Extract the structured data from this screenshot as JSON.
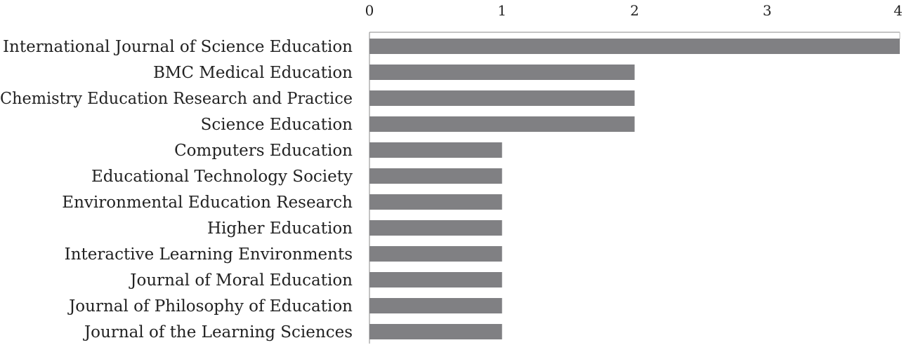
{
  "chart_data": {
    "type": "bar",
    "orientation": "horizontal",
    "x_axis_position": "top",
    "title": "",
    "xlabel": "",
    "ylabel": "",
    "xlim": [
      0,
      4
    ],
    "ticks": [
      "0",
      "1",
      "2",
      "3",
      "4"
    ],
    "grid": false,
    "legend": "none",
    "bar_color": "#808083",
    "categories": [
      "International Journal of Science Education",
      "BMC Medical Education",
      "Chemistry Education Research and Practice",
      "Science Education",
      "Computers Education",
      "Educational Technology Society",
      "Environmental Education Research",
      "Higher Education",
      "Interactive Learning Environments",
      "Journal of Moral Education",
      "Journal of Philosophy of Education",
      "Journal of the Learning Sciences"
    ],
    "values": [
      4,
      2,
      2,
      2,
      1,
      1,
      1,
      1,
      1,
      1,
      1,
      1
    ]
  }
}
